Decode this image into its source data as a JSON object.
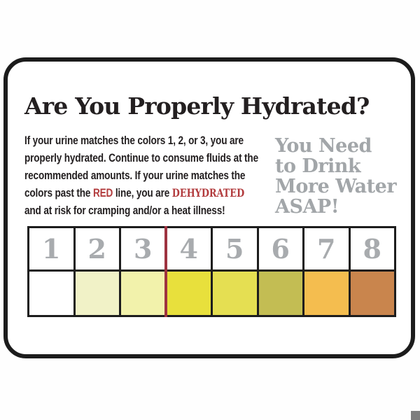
{
  "sign": {
    "title": "Are You Properly Hydrated?",
    "body_lines": [
      [
        {
          "t": "If your urine matches the colors 1, 2, or 3, you are"
        }
      ],
      [
        {
          "t": "properly hydrated. Continue to consume fluids at the"
        }
      ],
      [
        {
          "t": "recommended amounts.  If your urine matches the"
        }
      ],
      [
        {
          "t": "colors past the "
        },
        {
          "t": "RED",
          "red": true
        },
        {
          "t": " line, you are "
        },
        {
          "t": "DEHYDRATED",
          "red": true,
          "slab": true
        }
      ],
      [
        {
          "t": "and at risk for cramping and/or a heat illness!"
        }
      ]
    ],
    "warning_lines": [
      "You Need",
      "to Drink",
      "More Water",
      "ASAP!"
    ],
    "chart": {
      "numbers": [
        "1",
        "2",
        "3",
        "4",
        "5",
        "6",
        "7",
        "8"
      ],
      "swatch_colors": [
        "#ffffff",
        "#f1f2c7",
        "#f2f2ab",
        "#e8e03c",
        "#e5df52",
        "#c3bd53",
        "#f4bd4f",
        "#c9854d"
      ],
      "red_line_after_column": 3
    },
    "colors": {
      "text_red": "#b23b3d",
      "red_line": "#9e3340",
      "warning_gray": "#a2a6a9",
      "number_gray": "#a8abae",
      "border_black": "#1d1d1d"
    }
  },
  "watermark": {
    "corner_square_color": "#7f7f7f"
  }
}
